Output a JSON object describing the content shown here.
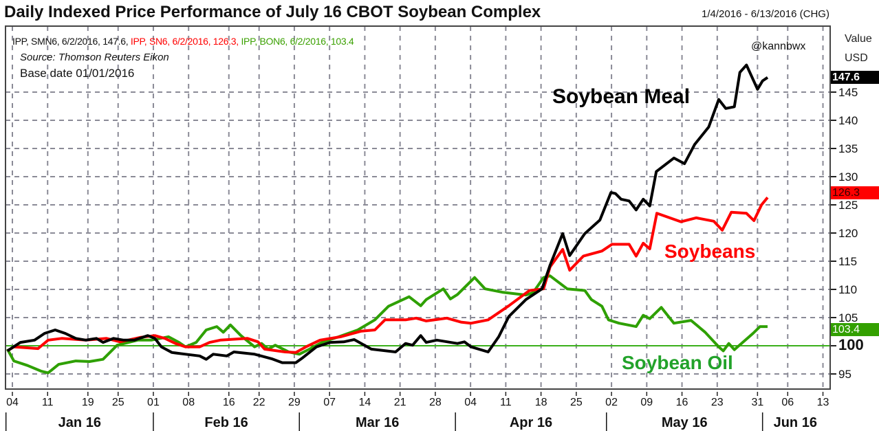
{
  "title": "Daily Indexed Price Performance of July 16 CBOT Soybean Complex",
  "date_range": "1/4/2016 - 6/13/2016 (CHG)",
  "legend": [
    {
      "text": "IPP, SMN6, 6/2/2016, 147.6,",
      "color": "#111111"
    },
    {
      "text": " IPP, SN6, 6/2/2016, 126.3,",
      "color": "#ff0000"
    },
    {
      "text": " IPP, BON6, 6/2/2016, 103.4",
      "color": "#3aa000"
    }
  ],
  "source": "Source: Thomson Reuters Eikon",
  "base_date": "Base date 01/01/2016",
  "handle": "@kannbwx",
  "axis_unit": {
    "value": "Value",
    "currency": "USD"
  },
  "annotations": {
    "meal": "Soybean Meal",
    "beans": "Soybeans",
    "oil": "Soybean Oil"
  },
  "badges": [
    {
      "text": "147.6",
      "value": 147.6,
      "bg": "#000000",
      "fg": "#ffffff"
    },
    {
      "text": "126.3",
      "value": 126.3,
      "bg": "#ff0000",
      "fg": "#330000"
    },
    {
      "text": "103.4",
      "value": 103.4,
      "bg": "#33a000",
      "fg": "#ffffff"
    }
  ],
  "chart_data": {
    "type": "line",
    "title": "Daily Indexed Price Performance of July 16 CBOT Soybean Complex",
    "x_unit": "days since 2016-01-04",
    "xlim": [
      -1.4,
      162.4
    ],
    "ylim": [
      92.4,
      156.7
    ],
    "grid": true,
    "baseline": 100,
    "yticks": [
      95,
      100,
      105,
      110,
      115,
      120,
      125,
      130,
      135,
      140,
      145
    ],
    "xticks": [
      {
        "label": "04",
        "day": 0
      },
      {
        "label": "11",
        "day": 7
      },
      {
        "label": "19",
        "day": 15
      },
      {
        "label": "25",
        "day": 21
      },
      {
        "label": "01",
        "day": 28
      },
      {
        "label": "08",
        "day": 35
      },
      {
        "label": "16",
        "day": 43
      },
      {
        "label": "22",
        "day": 49
      },
      {
        "label": "29",
        "day": 56
      },
      {
        "label": "07",
        "day": 63
      },
      {
        "label": "14",
        "day": 70
      },
      {
        "label": "21",
        "day": 77
      },
      {
        "label": "28",
        "day": 84
      },
      {
        "label": "04",
        "day": 91
      },
      {
        "label": "11",
        "day": 98
      },
      {
        "label": "18",
        "day": 105
      },
      {
        "label": "25",
        "day": 112
      },
      {
        "label": "02",
        "day": 119
      },
      {
        "label": "09",
        "day": 126
      },
      {
        "label": "16",
        "day": 133
      },
      {
        "label": "23",
        "day": 140
      },
      {
        "label": "31",
        "day": 148
      },
      {
        "label": "06",
        "day": 154
      },
      {
        "label": "13",
        "day": 161
      }
    ],
    "months": [
      {
        "label": "Jan 16",
        "start": -1,
        "end": 28
      },
      {
        "label": "Feb 16",
        "start": 28,
        "end": 57
      },
      {
        "label": "Mar 16",
        "start": 57,
        "end": 88
      },
      {
        "label": "Apr 16",
        "start": 88,
        "end": 118
      },
      {
        "label": "May 16",
        "start": 118,
        "end": 149
      },
      {
        "label": "Jun 16",
        "start": 149,
        "end": 162
      }
    ],
    "series": [
      {
        "name": "IPP, SMN6 (Soybean Meal)",
        "color": "#000000",
        "points": [
          [
            -1,
            99.1
          ],
          [
            1.6,
            100.6
          ],
          [
            4.4,
            101.0
          ],
          [
            6.4,
            102.2
          ],
          [
            8.5,
            102.8
          ],
          [
            10.5,
            102.2
          ],
          [
            12.6,
            101.3
          ],
          [
            14.6,
            101.0
          ],
          [
            16.7,
            101.3
          ],
          [
            18.0,
            100.6
          ],
          [
            20.1,
            101.3
          ],
          [
            22.1,
            101.0
          ],
          [
            24.2,
            101.0
          ],
          [
            26.9,
            101.8
          ],
          [
            28.3,
            101.3
          ],
          [
            29.6,
            99.8
          ],
          [
            31.7,
            98.8
          ],
          [
            34.4,
            98.5
          ],
          [
            37.2,
            98.2
          ],
          [
            38.5,
            97.6
          ],
          [
            39.9,
            98.5
          ],
          [
            42.6,
            98.2
          ],
          [
            44.0,
            98.9
          ],
          [
            48.1,
            98.5
          ],
          [
            51.5,
            97.7
          ],
          [
            53.6,
            97.0
          ],
          [
            56.3,
            97.0
          ],
          [
            57.7,
            97.9
          ],
          [
            60.4,
            99.8
          ],
          [
            63.1,
            100.6
          ],
          [
            65.8,
            100.7
          ],
          [
            67.9,
            101.1
          ],
          [
            71.3,
            99.4
          ],
          [
            76.1,
            98.9
          ],
          [
            78.1,
            100.4
          ],
          [
            79.5,
            100.1
          ],
          [
            81.1,
            101.8
          ],
          [
            82.2,
            100.6
          ],
          [
            84.3,
            101.0
          ],
          [
            88.4,
            100.4
          ],
          [
            89.8,
            100.7
          ],
          [
            91.1,
            99.8
          ],
          [
            94.5,
            98.9
          ],
          [
            96.6,
            101.6
          ],
          [
            98.6,
            105.2
          ],
          [
            102.0,
            108.2
          ],
          [
            105.2,
            110.1
          ],
          [
            106.8,
            114.3
          ],
          [
            109.3,
            119.9
          ],
          [
            110.7,
            116.0
          ],
          [
            113.7,
            119.9
          ],
          [
            116.7,
            122.3
          ],
          [
            118.9,
            127.2
          ],
          [
            119.8,
            127.0
          ],
          [
            120.9,
            126.0
          ],
          [
            122.5,
            125.7
          ],
          [
            123.9,
            124.1
          ],
          [
            125.3,
            126.0
          ],
          [
            126.6,
            124.8
          ],
          [
            127.9,
            130.9
          ],
          [
            131.4,
            133.3
          ],
          [
            133.5,
            132.3
          ],
          [
            135.5,
            135.7
          ],
          [
            138.3,
            138.8
          ],
          [
            140.3,
            143.7
          ],
          [
            141.7,
            142.1
          ],
          [
            143.4,
            142.4
          ],
          [
            144.5,
            148.5
          ],
          [
            145.8,
            149.8
          ],
          [
            148.0,
            145.5
          ],
          [
            149.0,
            147.0
          ],
          [
            150.0,
            147.6
          ]
        ]
      },
      {
        "name": "IPP, SN6 (Soybeans)",
        "color": "#ff0000",
        "points": [
          [
            -1,
            99.1
          ],
          [
            0.3,
            99.8
          ],
          [
            5.1,
            99.5
          ],
          [
            7.1,
            101.0
          ],
          [
            9.8,
            101.3
          ],
          [
            14.6,
            101.0
          ],
          [
            18.7,
            101.3
          ],
          [
            21.4,
            100.7
          ],
          [
            25.5,
            101.5
          ],
          [
            28.3,
            101.8
          ],
          [
            30.3,
            101.3
          ],
          [
            32.4,
            100.4
          ],
          [
            34.4,
            99.8
          ],
          [
            37.2,
            99.8
          ],
          [
            39.2,
            100.6
          ],
          [
            41.3,
            101.0
          ],
          [
            46.7,
            101.3
          ],
          [
            48.8,
            100.7
          ],
          [
            50.1,
            99.4
          ],
          [
            54.2,
            98.9
          ],
          [
            56.3,
            98.8
          ],
          [
            58.3,
            99.8
          ],
          [
            61.1,
            101.0
          ],
          [
            65.2,
            101.6
          ],
          [
            69.3,
            102.6
          ],
          [
            72.0,
            102.8
          ],
          [
            74.0,
            104.6
          ],
          [
            78.1,
            104.6
          ],
          [
            80.2,
            104.9
          ],
          [
            82.2,
            104.4
          ],
          [
            86.3,
            104.9
          ],
          [
            89.1,
            104.2
          ],
          [
            91.1,
            104.0
          ],
          [
            94.5,
            104.6
          ],
          [
            98.6,
            107.1
          ],
          [
            102.7,
            109.8
          ],
          [
            105.5,
            110.1
          ],
          [
            106.8,
            114.0
          ],
          [
            109.3,
            117.1
          ],
          [
            110.7,
            113.4
          ],
          [
            113.4,
            115.9
          ],
          [
            117.1,
            116.8
          ],
          [
            119.1,
            118.0
          ],
          [
            122.5,
            118.0
          ],
          [
            123.9,
            115.9
          ],
          [
            125.3,
            118.2
          ],
          [
            126.6,
            117.2
          ],
          [
            128.0,
            123.5
          ],
          [
            132.8,
            122.0
          ],
          [
            135.8,
            122.7
          ],
          [
            139.3,
            122.1
          ],
          [
            141.0,
            120.5
          ],
          [
            142.8,
            123.7
          ],
          [
            145.8,
            123.5
          ],
          [
            147.3,
            122.2
          ],
          [
            148.8,
            125.0
          ],
          [
            150.0,
            126.3
          ]
        ]
      },
      {
        "name": "IPP, BON6 (Soybean Oil)",
        "color": "#2ea000",
        "points": [
          [
            -1,
            99.4
          ],
          [
            0.3,
            97.3
          ],
          [
            3.0,
            96.5
          ],
          [
            5.7,
            95.5
          ],
          [
            7.1,
            95.2
          ],
          [
            9.2,
            96.7
          ],
          [
            12.6,
            97.3
          ],
          [
            15.3,
            97.2
          ],
          [
            18.0,
            97.6
          ],
          [
            20.8,
            100.1
          ],
          [
            24.9,
            101.0
          ],
          [
            27.6,
            101.0
          ],
          [
            31.0,
            101.6
          ],
          [
            33.1,
            100.6
          ],
          [
            34.4,
            99.8
          ],
          [
            36.5,
            100.6
          ],
          [
            38.5,
            102.8
          ],
          [
            40.6,
            103.4
          ],
          [
            41.9,
            102.4
          ],
          [
            43.3,
            103.7
          ],
          [
            45.4,
            101.8
          ],
          [
            48.1,
            99.8
          ],
          [
            49.5,
            100.4
          ],
          [
            50.8,
            99.4
          ],
          [
            52.2,
            100.1
          ],
          [
            54.9,
            98.9
          ],
          [
            57.0,
            98.5
          ],
          [
            59.0,
            99.4
          ],
          [
            61.7,
            100.7
          ],
          [
            64.5,
            101.5
          ],
          [
            68.6,
            102.8
          ],
          [
            72.0,
            104.6
          ],
          [
            74.7,
            107.0
          ],
          [
            78.8,
            108.7
          ],
          [
            81.1,
            107.1
          ],
          [
            82.2,
            108.2
          ],
          [
            85.6,
            110.1
          ],
          [
            87.0,
            108.3
          ],
          [
            88.4,
            109.1
          ],
          [
            91.8,
            112.1
          ],
          [
            93.9,
            110.1
          ],
          [
            97.3,
            109.5
          ],
          [
            102.0,
            109.0
          ],
          [
            103.4,
            109.4
          ],
          [
            105.5,
            112.1
          ],
          [
            106.8,
            112.4
          ],
          [
            110.2,
            110.1
          ],
          [
            113.7,
            109.8
          ],
          [
            115.0,
            108.2
          ],
          [
            117.1,
            107.0
          ],
          [
            118.4,
            104.6
          ],
          [
            120.5,
            104.0
          ],
          [
            123.9,
            103.4
          ],
          [
            125.3,
            105.4
          ],
          [
            126.6,
            104.8
          ],
          [
            128.9,
            106.8
          ],
          [
            131.4,
            104.0
          ],
          [
            134.8,
            104.5
          ],
          [
            137.6,
            102.4
          ],
          [
            140.3,
            99.8
          ],
          [
            141.2,
            99.1
          ],
          [
            142.3,
            100.4
          ],
          [
            143.4,
            99.3
          ],
          [
            147.1,
            102.2
          ],
          [
            148.5,
            103.4
          ],
          [
            150.0,
            103.4
          ]
        ]
      }
    ]
  }
}
